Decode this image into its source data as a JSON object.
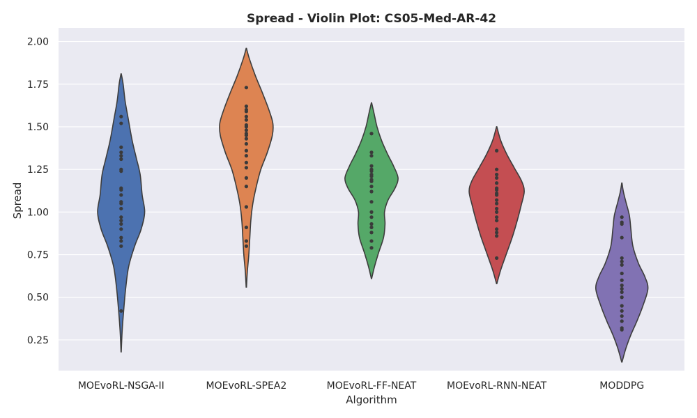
{
  "chart_data": {
    "type": "violin",
    "title": "Spread - Violin Plot: CS05-Med-AR-42",
    "xlabel": "Algorithm",
    "ylabel": "Spread",
    "ylim": [
      0.07,
      2.08
    ],
    "yticks": [
      "0.25",
      "0.50",
      "0.75",
      "1.00",
      "1.25",
      "1.50",
      "1.75",
      "2.00"
    ],
    "grid": true,
    "categories": [
      "MOEvoRL-NSGA-II",
      "MOEvoRL-SPEA2",
      "MOEvoRL-FF-NEAT",
      "MOEvoRL-RNN-NEAT",
      "MODDPG"
    ],
    "colors": [
      "#4c72b0",
      "#dd8452",
      "#55a868",
      "#c44e52",
      "#8172b3"
    ],
    "series": [
      {
        "category": "MOEvoRL-NSGA-II",
        "range": [
          0.18,
          1.81
        ],
        "profile": [
          [
            0.18,
            0.002
          ],
          [
            0.3,
            0.02
          ],
          [
            0.42,
            0.05
          ],
          [
            0.55,
            0.09
          ],
          [
            0.68,
            0.15
          ],
          [
            0.8,
            0.27
          ],
          [
            0.9,
            0.4
          ],
          [
            1.0,
            0.47
          ],
          [
            1.1,
            0.42
          ],
          [
            1.22,
            0.38
          ],
          [
            1.32,
            0.3
          ],
          [
            1.42,
            0.22
          ],
          [
            1.55,
            0.14
          ],
          [
            1.65,
            0.08
          ],
          [
            1.75,
            0.04
          ],
          [
            1.81,
            0.003
          ]
        ],
        "points": [
          0.42,
          0.8,
          0.83,
          0.85,
          0.9,
          0.93,
          0.95,
          0.97,
          1.02,
          1.05,
          1.06,
          1.1,
          1.13,
          1.14,
          1.24,
          1.25,
          1.31,
          1.33,
          1.35,
          1.38,
          1.52,
          1.56
        ]
      },
      {
        "category": "MOEvoRL-SPEA2",
        "range": [
          0.56,
          1.96
        ],
        "profile": [
          [
            0.56,
            0.003
          ],
          [
            0.65,
            0.02
          ],
          [
            0.75,
            0.05
          ],
          [
            0.85,
            0.07
          ],
          [
            0.95,
            0.09
          ],
          [
            1.05,
            0.13
          ],
          [
            1.15,
            0.2
          ],
          [
            1.25,
            0.29
          ],
          [
            1.35,
            0.42
          ],
          [
            1.45,
            0.52
          ],
          [
            1.52,
            0.53
          ],
          [
            1.6,
            0.45
          ],
          [
            1.7,
            0.32
          ],
          [
            1.8,
            0.18
          ],
          [
            1.9,
            0.06
          ],
          [
            1.96,
            0.003
          ]
        ],
        "points": [
          0.8,
          0.83,
          0.91,
          1.03,
          1.15,
          1.2,
          1.26,
          1.29,
          1.33,
          1.36,
          1.4,
          1.43,
          1.45,
          1.46,
          1.48,
          1.5,
          1.51,
          1.54,
          1.56,
          1.59,
          1.6,
          1.62,
          1.73
        ]
      },
      {
        "category": "MOEvoRL-FF-NEAT",
        "range": [
          0.61,
          1.64
        ],
        "profile": [
          [
            0.61,
            0.003
          ],
          [
            0.68,
            0.06
          ],
          [
            0.76,
            0.14
          ],
          [
            0.85,
            0.24
          ],
          [
            0.93,
            0.27
          ],
          [
            1.0,
            0.26
          ],
          [
            1.07,
            0.33
          ],
          [
            1.14,
            0.47
          ],
          [
            1.2,
            0.53
          ],
          [
            1.27,
            0.44
          ],
          [
            1.34,
            0.32
          ],
          [
            1.42,
            0.2
          ],
          [
            1.5,
            0.11
          ],
          [
            1.58,
            0.05
          ],
          [
            1.64,
            0.003
          ]
        ],
        "points": [
          0.79,
          0.83,
          0.88,
          0.91,
          0.93,
          0.97,
          1.0,
          1.06,
          1.12,
          1.15,
          1.18,
          1.19,
          1.21,
          1.22,
          1.24,
          1.25,
          1.27,
          1.33,
          1.35,
          1.46
        ]
      },
      {
        "category": "MOEvoRL-RNN-NEAT",
        "range": [
          0.58,
          1.5
        ],
        "profile": [
          [
            0.58,
            0.003
          ],
          [
            0.66,
            0.08
          ],
          [
            0.76,
            0.2
          ],
          [
            0.86,
            0.32
          ],
          [
            0.96,
            0.42
          ],
          [
            1.04,
            0.49
          ],
          [
            1.12,
            0.55
          ],
          [
            1.18,
            0.5
          ],
          [
            1.26,
            0.35
          ],
          [
            1.34,
            0.2
          ],
          [
            1.42,
            0.08
          ],
          [
            1.5,
            0.003
          ]
        ],
        "points": [
          0.73,
          0.86,
          0.88,
          0.9,
          0.95,
          0.97,
          1.0,
          1.02,
          1.05,
          1.07,
          1.1,
          1.11,
          1.13,
          1.14,
          1.17,
          1.2,
          1.22,
          1.25,
          1.36
        ]
      },
      {
        "category": "MODDPG",
        "range": [
          0.12,
          1.17
        ],
        "profile": [
          [
            0.12,
            0.003
          ],
          [
            0.2,
            0.08
          ],
          [
            0.28,
            0.18
          ],
          [
            0.36,
            0.3
          ],
          [
            0.45,
            0.42
          ],
          [
            0.55,
            0.52
          ],
          [
            0.62,
            0.46
          ],
          [
            0.7,
            0.33
          ],
          [
            0.8,
            0.22
          ],
          [
            0.9,
            0.18
          ],
          [
            0.98,
            0.15
          ],
          [
            1.06,
            0.08
          ],
          [
            1.12,
            0.03
          ],
          [
            1.17,
            0.003
          ]
        ],
        "points": [
          0.31,
          0.32,
          0.36,
          0.39,
          0.42,
          0.45,
          0.5,
          0.53,
          0.55,
          0.57,
          0.6,
          0.64,
          0.69,
          0.71,
          0.73,
          0.85,
          0.93,
          0.94,
          0.97
        ]
      }
    ]
  }
}
